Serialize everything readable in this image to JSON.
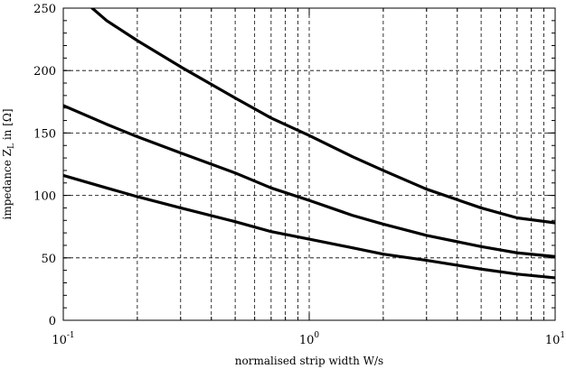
{
  "chart_data": {
    "type": "line",
    "xlabel": "normalised strip width W/s",
    "ylabel": "impedance Z",
    "ylabel_sub": "L",
    "ylabel_suffix": " in [Ω]",
    "xscale": "log",
    "xlim": [
      0.1,
      10
    ],
    "ylim": [
      0,
      250
    ],
    "grid": true,
    "grid_style": "dashed",
    "x_major_ticks": [
      {
        "value": 0.1,
        "base": "10",
        "exp": "-1"
      },
      {
        "value": 1,
        "base": "10",
        "exp": "0"
      },
      {
        "value": 10,
        "base": "10",
        "exp": "1"
      }
    ],
    "y_ticks": [
      0,
      50,
      100,
      150,
      200,
      250
    ],
    "line_color": "#000000",
    "series": [
      {
        "x": [
          0.1,
          0.15,
          0.2,
          0.3,
          0.5,
          0.7,
          1,
          1.5,
          2,
          3,
          5,
          7,
          10
        ],
        "values": [
          270,
          240,
          224,
          203,
          178,
          162,
          148,
          131,
          120,
          105,
          90,
          82,
          78
        ]
      },
      {
        "x": [
          0.1,
          0.15,
          0.2,
          0.3,
          0.5,
          0.7,
          1,
          1.5,
          2,
          3,
          5,
          7,
          10
        ],
        "values": [
          172,
          157,
          147,
          134,
          118,
          106,
          96,
          84,
          77,
          68,
          59,
          54,
          51
        ]
      },
      {
        "x": [
          0.1,
          0.15,
          0.2,
          0.3,
          0.5,
          0.7,
          1,
          1.5,
          2,
          3,
          5,
          7,
          10
        ],
        "values": [
          116,
          106,
          99,
          90,
          79,
          71,
          65,
          58,
          53,
          48,
          41,
          37,
          34
        ]
      }
    ]
  }
}
